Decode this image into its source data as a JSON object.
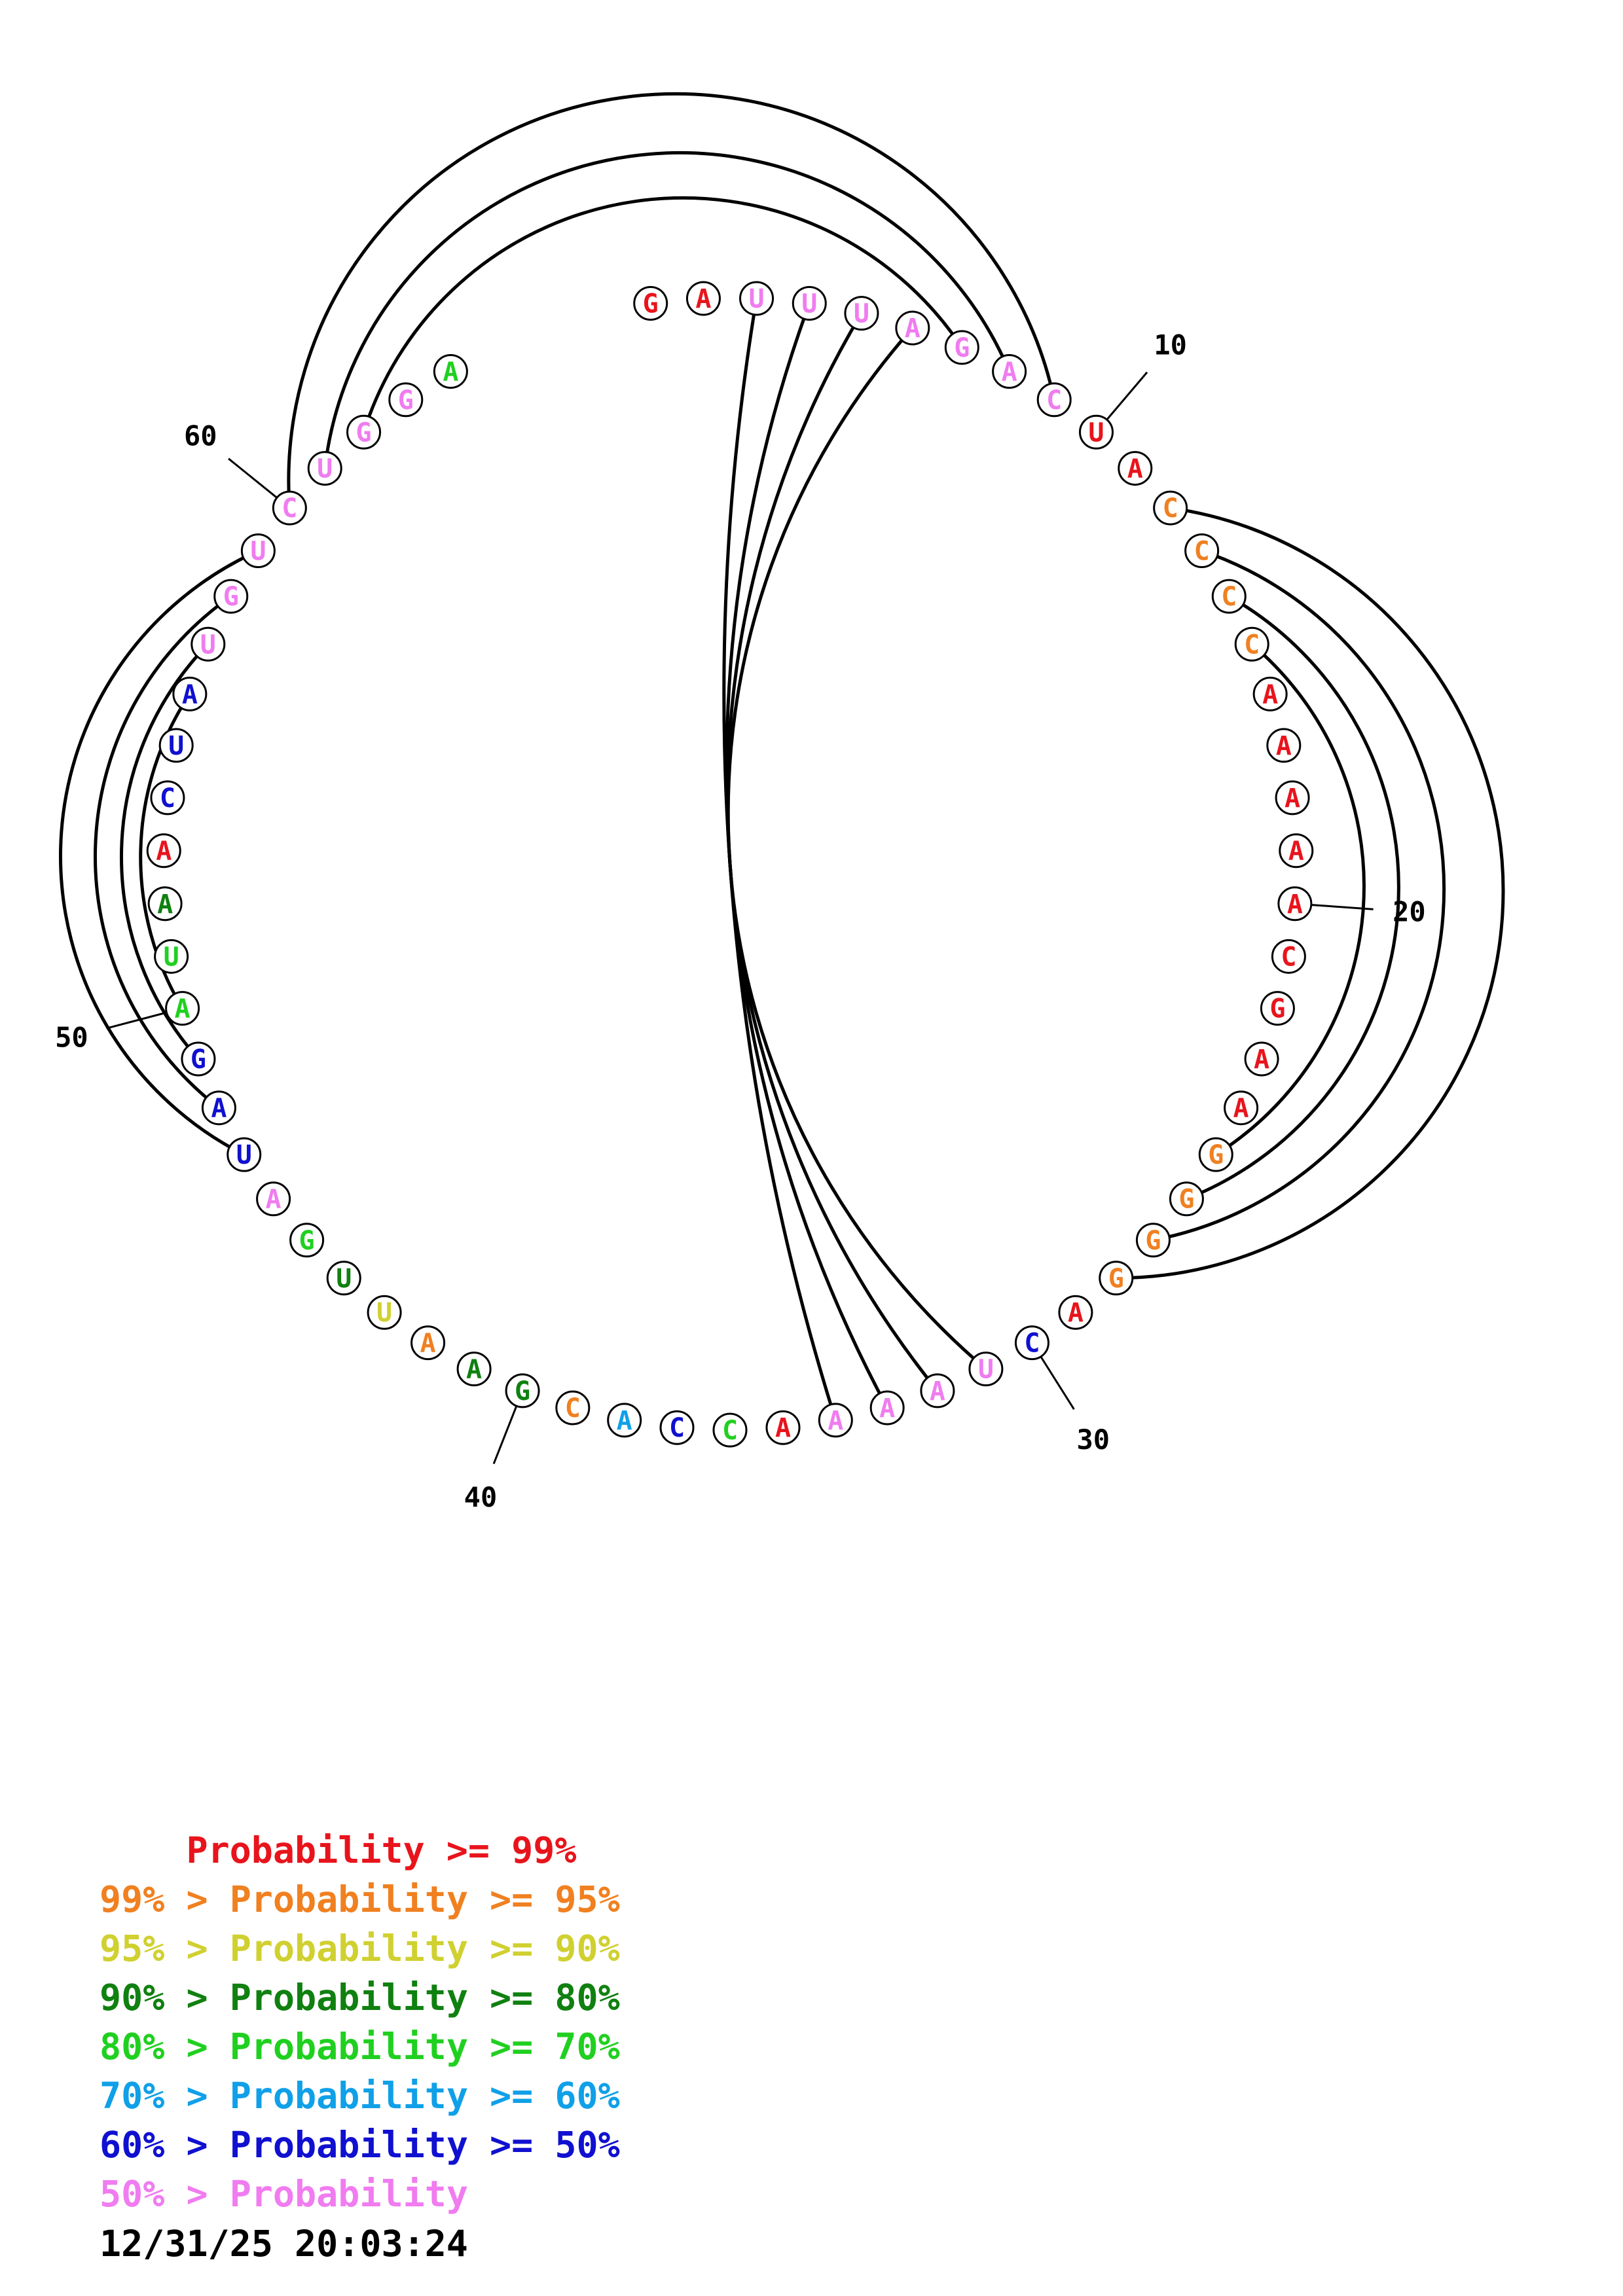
{
  "sequence": [
    {
      "base": "G",
      "color": "#e8141c"
    },
    {
      "base": "A",
      "color": "#e8141c"
    },
    {
      "base": "U",
      "color": "#f07cf0"
    },
    {
      "base": "U",
      "color": "#f07cf0"
    },
    {
      "base": "U",
      "color": "#f07cf0"
    },
    {
      "base": "A",
      "color": "#f07cf0"
    },
    {
      "base": "G",
      "color": "#f07cf0"
    },
    {
      "base": "A",
      "color": "#f07cf0"
    },
    {
      "base": "C",
      "color": "#f07cf0"
    },
    {
      "base": "U",
      "color": "#e8141c"
    },
    {
      "base": "A",
      "color": "#e8141c"
    },
    {
      "base": "C",
      "color": "#f08020"
    },
    {
      "base": "C",
      "color": "#f08020"
    },
    {
      "base": "C",
      "color": "#f08020"
    },
    {
      "base": "C",
      "color": "#f08020"
    },
    {
      "base": "A",
      "color": "#e8141c"
    },
    {
      "base": "A",
      "color": "#e8141c"
    },
    {
      "base": "A",
      "color": "#e8141c"
    },
    {
      "base": "A",
      "color": "#e8141c"
    },
    {
      "base": "A",
      "color": "#e8141c"
    },
    {
      "base": "C",
      "color": "#e8141c"
    },
    {
      "base": "G",
      "color": "#e8141c"
    },
    {
      "base": "A",
      "color": "#e8141c"
    },
    {
      "base": "A",
      "color": "#e8141c"
    },
    {
      "base": "G",
      "color": "#f08020"
    },
    {
      "base": "G",
      "color": "#f08020"
    },
    {
      "base": "G",
      "color": "#f08020"
    },
    {
      "base": "G",
      "color": "#f08020"
    },
    {
      "base": "A",
      "color": "#e8141c"
    },
    {
      "base": "C",
      "color": "#1010d0"
    },
    {
      "base": "U",
      "color": "#f07cf0"
    },
    {
      "base": "A",
      "color": "#f07cf0"
    },
    {
      "base": "A",
      "color": "#f07cf0"
    },
    {
      "base": "A",
      "color": "#f07cf0"
    },
    {
      "base": "A",
      "color": "#e8141c"
    },
    {
      "base": "C",
      "color": "#20d020"
    },
    {
      "base": "C",
      "color": "#1010d0"
    },
    {
      "base": "A",
      "color": "#10a0e8"
    },
    {
      "base": "C",
      "color": "#f08020"
    },
    {
      "base": "G",
      "color": "#108010"
    },
    {
      "base": "A",
      "color": "#108010"
    },
    {
      "base": "A",
      "color": "#f08020"
    },
    {
      "base": "U",
      "color": "#d0d030"
    },
    {
      "base": "U",
      "color": "#108010"
    },
    {
      "base": "G",
      "color": "#20d020"
    },
    {
      "base": "A",
      "color": "#f07cf0"
    },
    {
      "base": "U",
      "color": "#1010d0"
    },
    {
      "base": "A",
      "color": "#1010d0"
    },
    {
      "base": "G",
      "color": "#1010d0"
    },
    {
      "base": "A",
      "color": "#20d020"
    },
    {
      "base": "U",
      "color": "#20d020"
    },
    {
      "base": "A",
      "color": "#108010"
    },
    {
      "base": "A",
      "color": "#e8141c"
    },
    {
      "base": "C",
      "color": "#1010d0"
    },
    {
      "base": "U",
      "color": "#1010d0"
    },
    {
      "base": "A",
      "color": "#1010d0"
    },
    {
      "base": "U",
      "color": "#f07cf0"
    },
    {
      "base": "G",
      "color": "#f07cf0"
    },
    {
      "base": "U",
      "color": "#f07cf0"
    },
    {
      "base": "C",
      "color": "#f07cf0"
    },
    {
      "base": "U",
      "color": "#f07cf0"
    },
    {
      "base": "G",
      "color": "#f07cf0"
    },
    {
      "base": "G",
      "color": "#f07cf0"
    },
    {
      "base": "A",
      "color": "#20d020"
    }
  ],
  "pairs": [
    [
      3,
      34
    ],
    [
      4,
      33
    ],
    [
      5,
      32
    ],
    [
      6,
      31
    ],
    [
      7,
      62
    ],
    [
      8,
      61
    ],
    [
      9,
      60
    ],
    [
      12,
      28
    ],
    [
      13,
      27
    ],
    [
      14,
      26
    ],
    [
      15,
      25
    ],
    [
      47,
      59
    ],
    [
      48,
      58
    ],
    [
      49,
      57
    ],
    [
      50,
      56
    ]
  ],
  "position_labels": [
    {
      "index": 10,
      "text": "10"
    },
    {
      "index": 20,
      "text": "20"
    },
    {
      "index": 30,
      "text": "30"
    },
    {
      "index": 40,
      "text": "40"
    },
    {
      "index": 50,
      "text": "50"
    },
    {
      "index": 60,
      "text": "60"
    }
  ],
  "legend": [
    {
      "prefix": "    ",
      "label": "Probability >= 99%",
      "color": "#e8141c"
    },
    {
      "prefix": "99% > ",
      "label": "Probability >= 95%",
      "color": "#f08020"
    },
    {
      "prefix": "95% > ",
      "label": "Probability >= 90%",
      "color": "#d0d030"
    },
    {
      "prefix": "90% > ",
      "label": "Probability >= 80%",
      "color": "#108010"
    },
    {
      "prefix": "80% > ",
      "label": "Probability >= 70%",
      "color": "#20d020"
    },
    {
      "prefix": "70% > ",
      "label": "Probability >= 60%",
      "color": "#10a0e8"
    },
    {
      "prefix": "60% > ",
      "label": "Probability >= 50%",
      "color": "#1010d0"
    },
    {
      "prefix": "50% > ",
      "label": "Probability",
      "color": "#f07cf0"
    }
  ],
  "timestamp": "12/31/25 20:03:24"
}
